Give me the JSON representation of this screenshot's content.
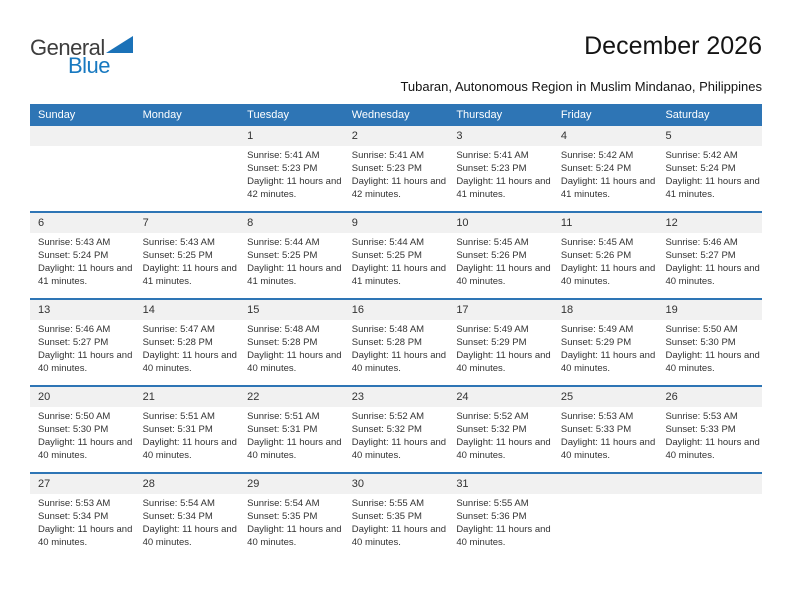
{
  "logo": {
    "line1": "General",
    "line2": "Blue"
  },
  "header": {
    "title": "December 2026",
    "subtitle": "Tubaran, Autonomous Region in Muslim Mindanao, Philippines"
  },
  "weekdays": [
    "Sunday",
    "Monday",
    "Tuesday",
    "Wednesday",
    "Thursday",
    "Friday",
    "Saturday"
  ],
  "colors": {
    "header_bar": "#2E75B5",
    "week_divider": "#2E75B5",
    "day_number_band": "#F1F1F1",
    "logo_blue": "#1879C0",
    "logo_gray": "#3D3D3D",
    "body_text": "#333333"
  },
  "weeks": [
    [
      {
        "day": "",
        "sunrise": "",
        "sunset": "",
        "daylight": ""
      },
      {
        "day": "",
        "sunrise": "",
        "sunset": "",
        "daylight": ""
      },
      {
        "day": "1",
        "sunrise": "Sunrise: 5:41 AM",
        "sunset": "Sunset: 5:23 PM",
        "daylight": "Daylight: 11 hours and 42 minutes."
      },
      {
        "day": "2",
        "sunrise": "Sunrise: 5:41 AM",
        "sunset": "Sunset: 5:23 PM",
        "daylight": "Daylight: 11 hours and 42 minutes."
      },
      {
        "day": "3",
        "sunrise": "Sunrise: 5:41 AM",
        "sunset": "Sunset: 5:23 PM",
        "daylight": "Daylight: 11 hours and 41 minutes."
      },
      {
        "day": "4",
        "sunrise": "Sunrise: 5:42 AM",
        "sunset": "Sunset: 5:24 PM",
        "daylight": "Daylight: 11 hours and 41 minutes."
      },
      {
        "day": "5",
        "sunrise": "Sunrise: 5:42 AM",
        "sunset": "Sunset: 5:24 PM",
        "daylight": "Daylight: 11 hours and 41 minutes."
      }
    ],
    [
      {
        "day": "6",
        "sunrise": "Sunrise: 5:43 AM",
        "sunset": "Sunset: 5:24 PM",
        "daylight": "Daylight: 11 hours and 41 minutes."
      },
      {
        "day": "7",
        "sunrise": "Sunrise: 5:43 AM",
        "sunset": "Sunset: 5:25 PM",
        "daylight": "Daylight: 11 hours and 41 minutes."
      },
      {
        "day": "8",
        "sunrise": "Sunrise: 5:44 AM",
        "sunset": "Sunset: 5:25 PM",
        "daylight": "Daylight: 11 hours and 41 minutes."
      },
      {
        "day": "9",
        "sunrise": "Sunrise: 5:44 AM",
        "sunset": "Sunset: 5:25 PM",
        "daylight": "Daylight: 11 hours and 41 minutes."
      },
      {
        "day": "10",
        "sunrise": "Sunrise: 5:45 AM",
        "sunset": "Sunset: 5:26 PM",
        "daylight": "Daylight: 11 hours and 40 minutes."
      },
      {
        "day": "11",
        "sunrise": "Sunrise: 5:45 AM",
        "sunset": "Sunset: 5:26 PM",
        "daylight": "Daylight: 11 hours and 40 minutes."
      },
      {
        "day": "12",
        "sunrise": "Sunrise: 5:46 AM",
        "sunset": "Sunset: 5:27 PM",
        "daylight": "Daylight: 11 hours and 40 minutes."
      }
    ],
    [
      {
        "day": "13",
        "sunrise": "Sunrise: 5:46 AM",
        "sunset": "Sunset: 5:27 PM",
        "daylight": "Daylight: 11 hours and 40 minutes."
      },
      {
        "day": "14",
        "sunrise": "Sunrise: 5:47 AM",
        "sunset": "Sunset: 5:28 PM",
        "daylight": "Daylight: 11 hours and 40 minutes."
      },
      {
        "day": "15",
        "sunrise": "Sunrise: 5:48 AM",
        "sunset": "Sunset: 5:28 PM",
        "daylight": "Daylight: 11 hours and 40 minutes."
      },
      {
        "day": "16",
        "sunrise": "Sunrise: 5:48 AM",
        "sunset": "Sunset: 5:28 PM",
        "daylight": "Daylight: 11 hours and 40 minutes."
      },
      {
        "day": "17",
        "sunrise": "Sunrise: 5:49 AM",
        "sunset": "Sunset: 5:29 PM",
        "daylight": "Daylight: 11 hours and 40 minutes."
      },
      {
        "day": "18",
        "sunrise": "Sunrise: 5:49 AM",
        "sunset": "Sunset: 5:29 PM",
        "daylight": "Daylight: 11 hours and 40 minutes."
      },
      {
        "day": "19",
        "sunrise": "Sunrise: 5:50 AM",
        "sunset": "Sunset: 5:30 PM",
        "daylight": "Daylight: 11 hours and 40 minutes."
      }
    ],
    [
      {
        "day": "20",
        "sunrise": "Sunrise: 5:50 AM",
        "sunset": "Sunset: 5:30 PM",
        "daylight": "Daylight: 11 hours and 40 minutes."
      },
      {
        "day": "21",
        "sunrise": "Sunrise: 5:51 AM",
        "sunset": "Sunset: 5:31 PM",
        "daylight": "Daylight: 11 hours and 40 minutes."
      },
      {
        "day": "22",
        "sunrise": "Sunrise: 5:51 AM",
        "sunset": "Sunset: 5:31 PM",
        "daylight": "Daylight: 11 hours and 40 minutes."
      },
      {
        "day": "23",
        "sunrise": "Sunrise: 5:52 AM",
        "sunset": "Sunset: 5:32 PM",
        "daylight": "Daylight: 11 hours and 40 minutes."
      },
      {
        "day": "24",
        "sunrise": "Sunrise: 5:52 AM",
        "sunset": "Sunset: 5:32 PM",
        "daylight": "Daylight: 11 hours and 40 minutes."
      },
      {
        "day": "25",
        "sunrise": "Sunrise: 5:53 AM",
        "sunset": "Sunset: 5:33 PM",
        "daylight": "Daylight: 11 hours and 40 minutes."
      },
      {
        "day": "26",
        "sunrise": "Sunrise: 5:53 AM",
        "sunset": "Sunset: 5:33 PM",
        "daylight": "Daylight: 11 hours and 40 minutes."
      }
    ],
    [
      {
        "day": "27",
        "sunrise": "Sunrise: 5:53 AM",
        "sunset": "Sunset: 5:34 PM",
        "daylight": "Daylight: 11 hours and 40 minutes."
      },
      {
        "day": "28",
        "sunrise": "Sunrise: 5:54 AM",
        "sunset": "Sunset: 5:34 PM",
        "daylight": "Daylight: 11 hours and 40 minutes."
      },
      {
        "day": "29",
        "sunrise": "Sunrise: 5:54 AM",
        "sunset": "Sunset: 5:35 PM",
        "daylight": "Daylight: 11 hours and 40 minutes."
      },
      {
        "day": "30",
        "sunrise": "Sunrise: 5:55 AM",
        "sunset": "Sunset: 5:35 PM",
        "daylight": "Daylight: 11 hours and 40 minutes."
      },
      {
        "day": "31",
        "sunrise": "Sunrise: 5:55 AM",
        "sunset": "Sunset: 5:36 PM",
        "daylight": "Daylight: 11 hours and 40 minutes."
      },
      {
        "day": "",
        "sunrise": "",
        "sunset": "",
        "daylight": ""
      },
      {
        "day": "",
        "sunrise": "",
        "sunset": "",
        "daylight": ""
      }
    ]
  ]
}
